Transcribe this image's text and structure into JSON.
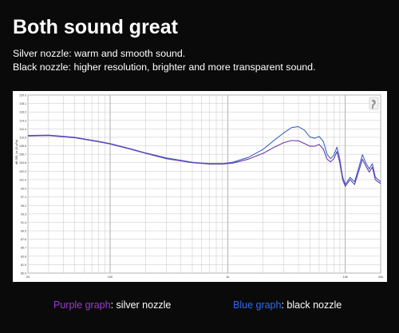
{
  "header": {
    "title": "Both sound great",
    "line1": "Silver nozzle: warm and smooth sound.",
    "line2": "Black nozzle: higher resolution, brighter and more transparent sound."
  },
  "legend": {
    "purple_label": "Purple graph",
    "purple_sep": ":",
    "purple_desc": " silver nozzle",
    "blue_label": "Blue graph",
    "blue_sep": ":",
    "blue_desc": " black nozzle",
    "purple_color": "#9b3bd0",
    "blue_color": "#2f6bf0"
  },
  "chart_data": {
    "type": "line",
    "xscale": "log",
    "xlim": [
      20,
      20000
    ],
    "ylim": [
      80,
      120
    ],
    "xticks": [
      {
        "value": 20,
        "label": "20"
      },
      {
        "value": 100,
        "label": "100"
      },
      {
        "value": 1000,
        "label": "1k"
      },
      {
        "value": 10000,
        "label": "10k"
      },
      {
        "value": 20000,
        "label": "20k"
      }
    ],
    "yticks": [
      80,
      81.9,
      83.8,
      85.7,
      87.6,
      89.5,
      91.4,
      93.3,
      95.2,
      97.1,
      99.0,
      101.0,
      102.9,
      104.8,
      106.7,
      108.6,
      110.5,
      112.4,
      114.3,
      116.2,
      118.1,
      120.0
    ],
    "ylabel": "dB SPL (re 20 µPa)",
    "grid": true,
    "series": [
      {
        "color": "#3b63c9",
        "points": [
          [
            20,
            110.9
          ],
          [
            30,
            111.0
          ],
          [
            50,
            110.5
          ],
          [
            80,
            109.6
          ],
          [
            100,
            109.1
          ],
          [
            150,
            107.9
          ],
          [
            200,
            107.0
          ],
          [
            300,
            105.9
          ],
          [
            500,
            104.9
          ],
          [
            700,
            104.6
          ],
          [
            900,
            104.6
          ],
          [
            1100,
            104.9
          ],
          [
            1500,
            106.0
          ],
          [
            2000,
            107.8
          ],
          [
            2500,
            109.9
          ],
          [
            3000,
            111.5
          ],
          [
            3500,
            112.7
          ],
          [
            4000,
            112.9
          ],
          [
            4500,
            112.1
          ],
          [
            5000,
            110.6
          ],
          [
            5500,
            110.3
          ],
          [
            6000,
            110.7
          ],
          [
            6500,
            109.6
          ],
          [
            7000,
            106.7
          ],
          [
            7500,
            105.7
          ],
          [
            8000,
            106.5
          ],
          [
            8500,
            108.3
          ],
          [
            9000,
            105.5
          ],
          [
            9500,
            101.6
          ],
          [
            10000,
            99.9
          ],
          [
            11000,
            101.5
          ],
          [
            12000,
            100.5
          ],
          [
            13000,
            103.6
          ],
          [
            14000,
            106.6
          ],
          [
            15000,
            104.7
          ],
          [
            16000,
            103.4
          ],
          [
            17000,
            104.6
          ],
          [
            18000,
            101.6
          ],
          [
            19000,
            101.0
          ],
          [
            20000,
            100.5
          ]
        ]
      },
      {
        "color": "#6a3aa8",
        "points": [
          [
            20,
            110.8
          ],
          [
            30,
            110.9
          ],
          [
            50,
            110.4
          ],
          [
            80,
            109.5
          ],
          [
            100,
            109.0
          ],
          [
            150,
            107.8
          ],
          [
            200,
            106.9
          ],
          [
            300,
            105.7
          ],
          [
            500,
            104.8
          ],
          [
            700,
            104.5
          ],
          [
            900,
            104.5
          ],
          [
            1100,
            104.7
          ],
          [
            1500,
            105.6
          ],
          [
            2000,
            106.9
          ],
          [
            2500,
            108.3
          ],
          [
            3000,
            109.3
          ],
          [
            3500,
            109.8
          ],
          [
            4000,
            109.7
          ],
          [
            4500,
            109.1
          ],
          [
            5000,
            108.5
          ],
          [
            5500,
            108.5
          ],
          [
            6000,
            108.9
          ],
          [
            6500,
            107.9
          ],
          [
            7000,
            105.6
          ],
          [
            7500,
            105.0
          ],
          [
            8000,
            105.7
          ],
          [
            8500,
            107.3
          ],
          [
            9000,
            104.7
          ],
          [
            9500,
            101.0
          ],
          [
            10000,
            99.5
          ],
          [
            11000,
            101.0
          ],
          [
            12000,
            99.9
          ],
          [
            13000,
            102.8
          ],
          [
            14000,
            105.6
          ],
          [
            15000,
            104.0
          ],
          [
            16000,
            102.7
          ],
          [
            17000,
            103.8
          ],
          [
            18000,
            101.0
          ],
          [
            19000,
            100.5
          ],
          [
            20000,
            100.1
          ]
        ]
      }
    ]
  }
}
